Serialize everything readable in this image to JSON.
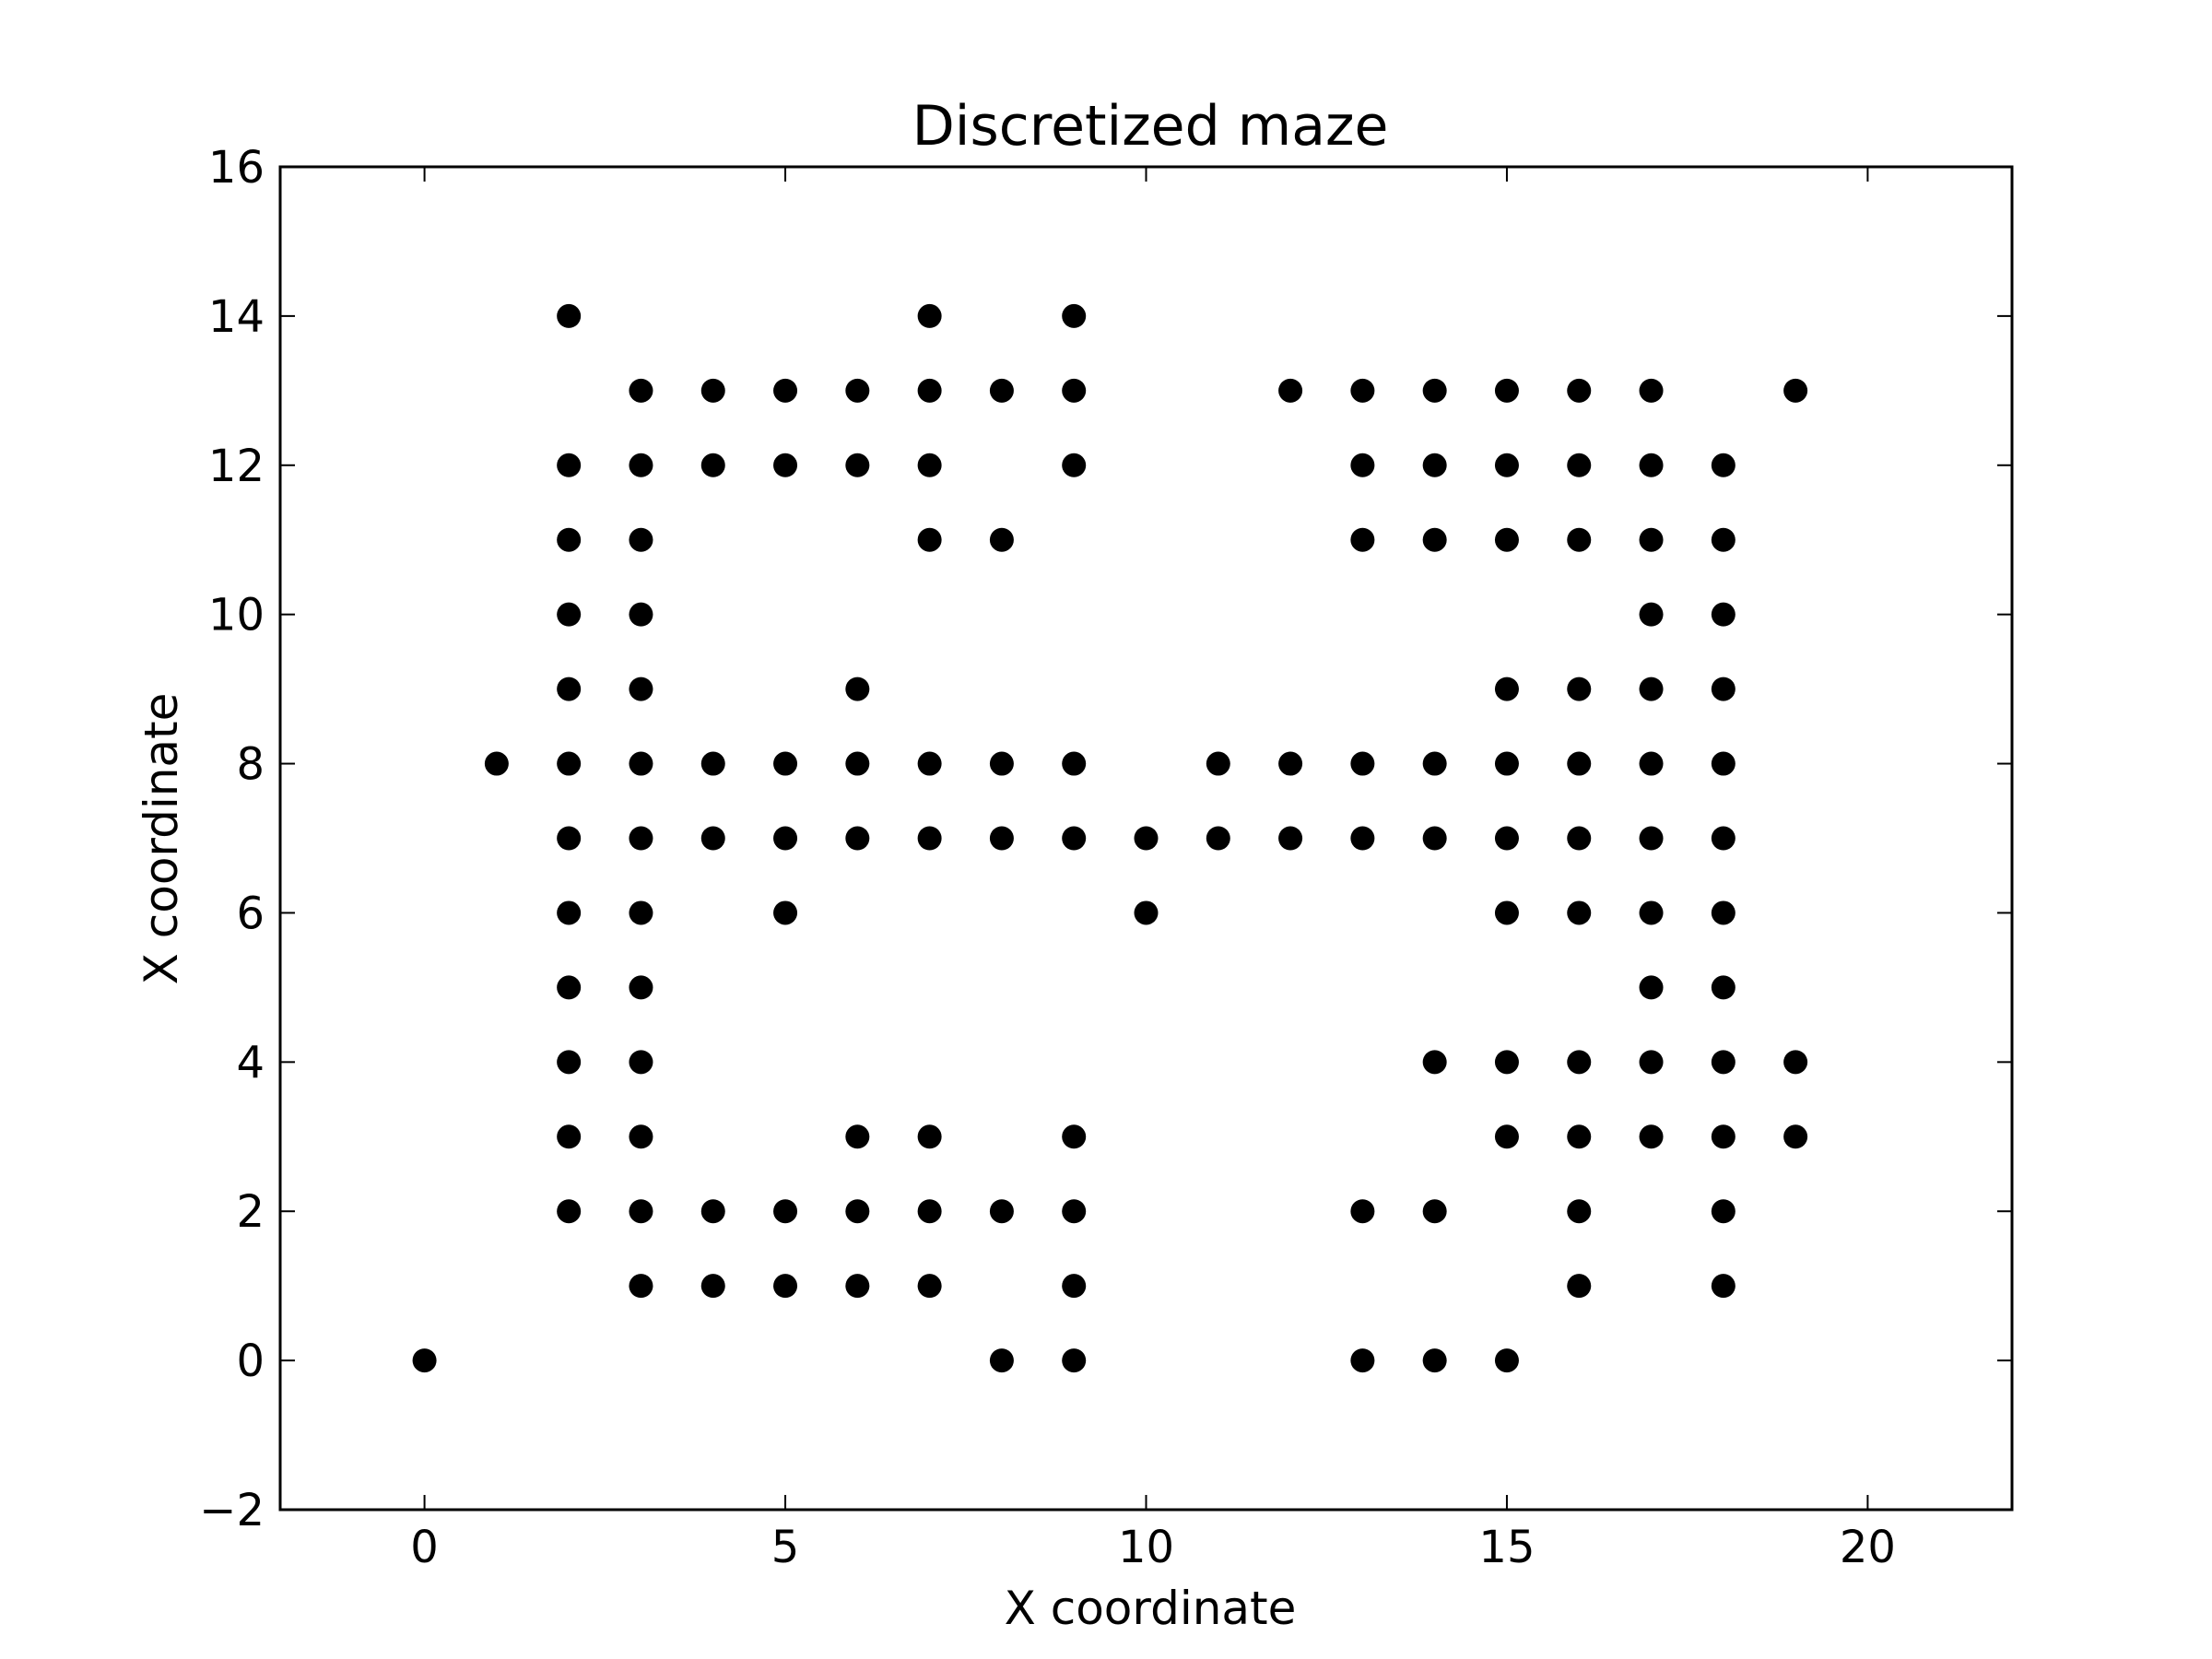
{
  "chart_data": {
    "type": "scatter",
    "title": "Discretized maze",
    "xlabel": "X coordinate",
    "ylabel": "X coordinate",
    "xlim": [
      -2,
      22
    ],
    "ylim": [
      -2,
      16
    ],
    "xticks": [
      "0",
      "5",
      "10",
      "15",
      "20"
    ],
    "yticks": [
      "−2",
      "0",
      "2",
      "4",
      "6",
      "8",
      "10",
      "12",
      "14",
      "16"
    ],
    "grid": false,
    "marker_color": "#000000",
    "points": [
      [
        0,
        0
      ],
      [
        1,
        8
      ],
      [
        2,
        14
      ],
      [
        2,
        12
      ],
      [
        2,
        11
      ],
      [
        2,
        10
      ],
      [
        2,
        9
      ],
      [
        2,
        8
      ],
      [
        2,
        7
      ],
      [
        2,
        6
      ],
      [
        2,
        5
      ],
      [
        2,
        4
      ],
      [
        2,
        3
      ],
      [
        2,
        2
      ],
      [
        3,
        13
      ],
      [
        3,
        12
      ],
      [
        3,
        11
      ],
      [
        3,
        10
      ],
      [
        3,
        9
      ],
      [
        3,
        8
      ],
      [
        3,
        7
      ],
      [
        3,
        6
      ],
      [
        3,
        5
      ],
      [
        3,
        4
      ],
      [
        3,
        3
      ],
      [
        3,
        2
      ],
      [
        3,
        1
      ],
      [
        4,
        13
      ],
      [
        4,
        12
      ],
      [
        4,
        8
      ],
      [
        4,
        7
      ],
      [
        4,
        2
      ],
      [
        4,
        1
      ],
      [
        5,
        13
      ],
      [
        5,
        12
      ],
      [
        5,
        8
      ],
      [
        5,
        7
      ],
      [
        5,
        6
      ],
      [
        5,
        2
      ],
      [
        5,
        1
      ],
      [
        6,
        13
      ],
      [
        6,
        12
      ],
      [
        6,
        9
      ],
      [
        6,
        8
      ],
      [
        6,
        7
      ],
      [
        6,
        3
      ],
      [
        6,
        2
      ],
      [
        6,
        1
      ],
      [
        7,
        14
      ],
      [
        7,
        13
      ],
      [
        7,
        12
      ],
      [
        7,
        11
      ],
      [
        7,
        8
      ],
      [
        7,
        7
      ],
      [
        7,
        3
      ],
      [
        7,
        2
      ],
      [
        7,
        1
      ],
      [
        8,
        13
      ],
      [
        8,
        11
      ],
      [
        8,
        8
      ],
      [
        8,
        7
      ],
      [
        8,
        2
      ],
      [
        8,
        0
      ],
      [
        9,
        14
      ],
      [
        9,
        13
      ],
      [
        9,
        12
      ],
      [
        9,
        8
      ],
      [
        9,
        7
      ],
      [
        9,
        3
      ],
      [
        9,
        2
      ],
      [
        9,
        1
      ],
      [
        9,
        0
      ],
      [
        10,
        7
      ],
      [
        10,
        6
      ],
      [
        11,
        8
      ],
      [
        11,
        7
      ],
      [
        12,
        13
      ],
      [
        12,
        8
      ],
      [
        12,
        7
      ],
      [
        13,
        13
      ],
      [
        13,
        12
      ],
      [
        13,
        11
      ],
      [
        13,
        8
      ],
      [
        13,
        7
      ],
      [
        13,
        2
      ],
      [
        13,
        0
      ],
      [
        14,
        13
      ],
      [
        14,
        12
      ],
      [
        14,
        11
      ],
      [
        14,
        8
      ],
      [
        14,
        7
      ],
      [
        14,
        4
      ],
      [
        14,
        2
      ],
      [
        14,
        0
      ],
      [
        15,
        13
      ],
      [
        15,
        12
      ],
      [
        15,
        11
      ],
      [
        15,
        9
      ],
      [
        15,
        8
      ],
      [
        15,
        7
      ],
      [
        15,
        6
      ],
      [
        15,
        4
      ],
      [
        15,
        3
      ],
      [
        15,
        0
      ],
      [
        16,
        13
      ],
      [
        16,
        12
      ],
      [
        16,
        11
      ],
      [
        16,
        9
      ],
      [
        16,
        8
      ],
      [
        16,
        7
      ],
      [
        16,
        6
      ],
      [
        16,
        4
      ],
      [
        16,
        3
      ],
      [
        16,
        2
      ],
      [
        16,
        1
      ],
      [
        17,
        13
      ],
      [
        17,
        12
      ],
      [
        17,
        11
      ],
      [
        17,
        10
      ],
      [
        17,
        9
      ],
      [
        17,
        8
      ],
      [
        17,
        7
      ],
      [
        17,
        6
      ],
      [
        17,
        5
      ],
      [
        17,
        4
      ],
      [
        17,
        3
      ],
      [
        18,
        12
      ],
      [
        18,
        11
      ],
      [
        18,
        10
      ],
      [
        18,
        9
      ],
      [
        18,
        8
      ],
      [
        18,
        7
      ],
      [
        18,
        6
      ],
      [
        18,
        5
      ],
      [
        18,
        4
      ],
      [
        18,
        3
      ],
      [
        18,
        2
      ],
      [
        18,
        1
      ],
      [
        19,
        13
      ],
      [
        19,
        4
      ],
      [
        19,
        3
      ]
    ]
  }
}
